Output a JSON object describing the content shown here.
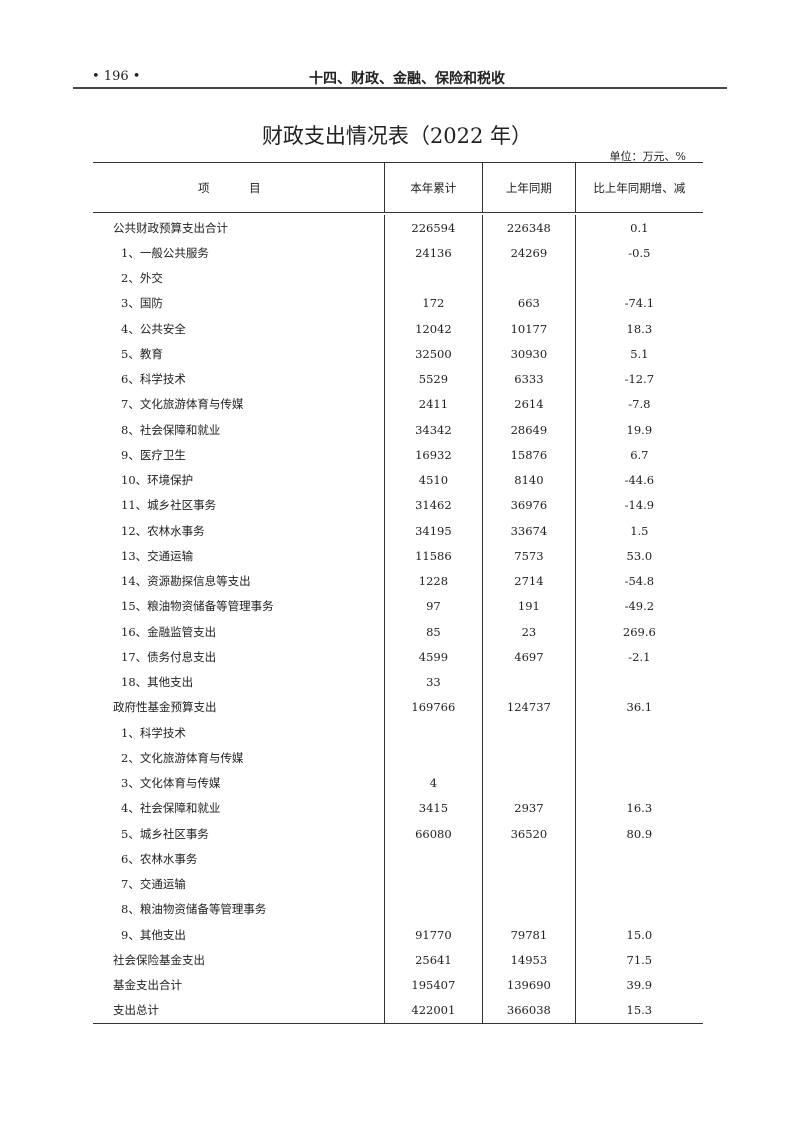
{
  "header": {
    "page_number": "• 196 •",
    "chapter": "十四、财政、金融、保险和税收"
  },
  "table": {
    "title": "财政支出情况表（2022 年）",
    "unit": "单位：万元、%",
    "columns": [
      "项  目",
      "本年累计",
      "上年同期",
      "比上年同期增、减"
    ],
    "rows": [
      {
        "item": "公共财政预算支出合计",
        "level": 0,
        "current": "226594",
        "previous": "226348",
        "change": "0.1"
      },
      {
        "item": "1、一般公共服务",
        "level": 1,
        "current": "24136",
        "previous": "24269",
        "change": "-0.5"
      },
      {
        "item": "2、外交",
        "level": 1,
        "current": "",
        "previous": "",
        "change": ""
      },
      {
        "item": "3、国防",
        "level": 1,
        "current": "172",
        "previous": "663",
        "change": "-74.1"
      },
      {
        "item": "4、公共安全",
        "level": 1,
        "current": "12042",
        "previous": "10177",
        "change": "18.3"
      },
      {
        "item": "5、教育",
        "level": 1,
        "current": "32500",
        "previous": "30930",
        "change": "5.1"
      },
      {
        "item": "6、科学技术",
        "level": 1,
        "current": "5529",
        "previous": "6333",
        "change": "-12.7"
      },
      {
        "item": "7、文化旅游体育与传媒",
        "level": 1,
        "current": "2411",
        "previous": "2614",
        "change": "-7.8"
      },
      {
        "item": "8、社会保障和就业",
        "level": 1,
        "current": "34342",
        "previous": "28649",
        "change": "19.9"
      },
      {
        "item": "9、医疗卫生",
        "level": 1,
        "current": "16932",
        "previous": "15876",
        "change": "6.7"
      },
      {
        "item": "10、环境保护",
        "level": 1,
        "current": "4510",
        "previous": "8140",
        "change": "-44.6"
      },
      {
        "item": "11、城乡社区事务",
        "level": 1,
        "current": "31462",
        "previous": "36976",
        "change": "-14.9"
      },
      {
        "item": "12、农林水事务",
        "level": 1,
        "current": "34195",
        "previous": "33674",
        "change": "1.5"
      },
      {
        "item": "13、交通运输",
        "level": 1,
        "current": "11586",
        "previous": "7573",
        "change": "53.0"
      },
      {
        "item": "14、资源勘探信息等支出",
        "level": 1,
        "current": "1228",
        "previous": "2714",
        "change": "-54.8"
      },
      {
        "item": "15、粮油物资储备等管理事务",
        "level": 1,
        "current": "97",
        "previous": "191",
        "change": "-49.2"
      },
      {
        "item": "16、金融监管支出",
        "level": 1,
        "current": "85",
        "previous": "23",
        "change": "269.6"
      },
      {
        "item": "17、债务付息支出",
        "level": 1,
        "current": "4599",
        "previous": "4697",
        "change": "-2.1"
      },
      {
        "item": "18、其他支出",
        "level": 1,
        "current": "33",
        "previous": "",
        "change": ""
      },
      {
        "item": "政府性基金预算支出",
        "level": 0,
        "current": "169766",
        "previous": "124737",
        "change": "36.1"
      },
      {
        "item": "1、科学技术",
        "level": 1,
        "current": "",
        "previous": "",
        "change": ""
      },
      {
        "item": "2、文化旅游体育与传媒",
        "level": 1,
        "current": "",
        "previous": "",
        "change": ""
      },
      {
        "item": "3、文化体育与传媒",
        "level": 1,
        "current": "4",
        "previous": "",
        "change": ""
      },
      {
        "item": "4、社会保障和就业",
        "level": 1,
        "current": "3415",
        "previous": "2937",
        "change": "16.3"
      },
      {
        "item": "5、城乡社区事务",
        "level": 1,
        "current": "66080",
        "previous": "36520",
        "change": "80.9"
      },
      {
        "item": "6、农林水事务",
        "level": 1,
        "current": "",
        "previous": "",
        "change": ""
      },
      {
        "item": "7、交通运输",
        "level": 1,
        "current": "",
        "previous": "",
        "change": ""
      },
      {
        "item": "8、粮油物资储备等管理事务",
        "level": 1,
        "current": "",
        "previous": "",
        "change": ""
      },
      {
        "item": "9、其他支出",
        "level": 1,
        "current": "91770",
        "previous": "79781",
        "change": "15.0"
      },
      {
        "item": "社会保险基金支出",
        "level": 0,
        "current": "25641",
        "previous": "14953",
        "change": "71.5"
      },
      {
        "item": "基金支出合计",
        "level": 0,
        "current": "195407",
        "previous": "139690",
        "change": "39.9"
      },
      {
        "item": "支出总计",
        "level": 0,
        "current": "422001",
        "previous": "366038",
        "change": "15.3"
      }
    ]
  }
}
